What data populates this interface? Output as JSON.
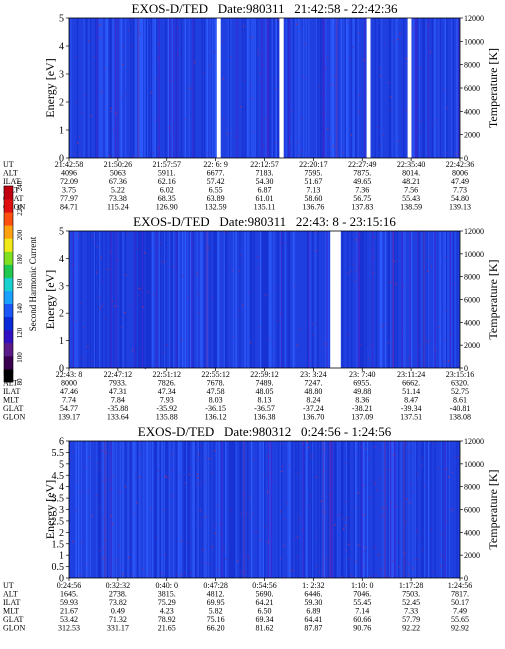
{
  "chart_data": [
    {
      "type": "heatmap",
      "title": "EXOS-D/TED   Date:980311   21:42:58 - 22:42:36",
      "ylabel": "Energy [eV]",
      "y2label": "Temperature [K]",
      "ylim": [
        0,
        5
      ],
      "y2lim": [
        0,
        12000
      ],
      "yticks": [
        "0",
        "1",
        "2",
        "3",
        "4",
        "5"
      ],
      "y2ticks": [
        "0",
        "2000",
        "4000",
        "6000",
        "8000",
        "10000",
        "12000"
      ],
      "data_gaps": [
        [
          0.378,
          0.388
        ],
        [
          0.538,
          0.549
        ],
        [
          0.761,
          0.771
        ],
        [
          0.866,
          0.876
        ]
      ],
      "row_labels": [
        "UT",
        "ALT",
        "ILAT",
        "MLT",
        "GLAT",
        "GLON"
      ],
      "columns": [
        [
          "21:42:58",
          "4096",
          "72.09",
          "3.75",
          "77.97",
          "84.71"
        ],
        [
          "21:50:26",
          "5063",
          "67.36",
          "5.22",
          "73.38",
          "115.24"
        ],
        [
          "21:57:57",
          "5911.",
          "62.16",
          "6.02",
          "68.35",
          "126.90"
        ],
        [
          "22: 6: 9",
          "6677.",
          "57.42",
          "6.55",
          "63.89",
          "132.59"
        ],
        [
          "22:12:57",
          "7183.",
          "54.30",
          "6.87",
          "61.01",
          "135.11"
        ],
        [
          "22:20:17",
          "7595.",
          "51.67",
          "7.13",
          "58.60",
          "136.76"
        ],
        [
          "22:27:49",
          "7875.",
          "49.65",
          "7.36",
          "56.75",
          "137.83"
        ],
        [
          "22:35:40",
          "8014.",
          "48.21",
          "7.56",
          "55.43",
          "138.59"
        ],
        [
          "22:42:36",
          "8006",
          "47.49",
          "7.73",
          "54.80",
          "139.13"
        ]
      ]
    },
    {
      "type": "heatmap",
      "title": "EXOS-D/TED   Date:980311   22:43: 8 - 23:15:16",
      "ylabel": "Energy [eV]",
      "y2label": "Temperature [K]",
      "ylim": [
        0,
        5
      ],
      "y2lim": [
        0,
        12000
      ],
      "yticks": [
        "0",
        "1",
        "2",
        "3",
        "4",
        "5"
      ],
      "y2ticks": [
        "0",
        "2000",
        "4000",
        "6000",
        "8000",
        "10000",
        "12000"
      ],
      "data_gaps": [
        [
          0.668,
          0.695
        ]
      ],
      "row_labels": [
        "UT",
        "ALT",
        "ILAT",
        "MLT",
        "GLAT",
        "GLON"
      ],
      "columns": [
        [
          "22:43: 8",
          "8000",
          "47.46",
          "7.74",
          "54.77",
          "139.17"
        ],
        [
          "22:47:12",
          "7933.",
          "47.31",
          "7.84",
          "-35.88",
          "133.64"
        ],
        [
          "22:51:12",
          "7826.",
          "47.34",
          "7.93",
          "-35.92",
          "135.88"
        ],
        [
          "22:55:12",
          "7678.",
          "47.58",
          "8.03",
          "-36.15",
          "136.12"
        ],
        [
          "22:59:12",
          "7489.",
          "48.05",
          "8.13",
          "-36.57",
          "136.38"
        ],
        [
          "23: 3:24",
          "7247.",
          "48.80",
          "8.24",
          "-37.24",
          "136.70"
        ],
        [
          "23: 7:40",
          "6955.",
          "49.88",
          "8.36",
          "-38.21",
          "137.09"
        ],
        [
          "23:11:24",
          "6662.",
          "51.14",
          "8.47",
          "-39.34",
          "137.51"
        ],
        [
          "23:15:16",
          "6320.",
          "52.75",
          "8.61",
          "-40.81",
          "138.08"
        ]
      ]
    },
    {
      "type": "heatmap",
      "title": "EXOS-D/TED   Date:980312   0:24:56 - 1:24:56",
      "ylabel": "Energy [eV]",
      "y2label": "Temperature [K]",
      "ylim": [
        0,
        6
      ],
      "y2lim": [
        0,
        12000
      ],
      "yticks": [
        "0",
        "0.5",
        "1",
        "1.5",
        "2",
        "2.5",
        "3",
        "3.5",
        "4",
        "4.5",
        "5",
        "5.5",
        "6"
      ],
      "y2ticks": [
        "0",
        "2000",
        "4000",
        "6000",
        "8000",
        "10000",
        "12000"
      ],
      "data_gaps": [],
      "row_labels": [
        "UT",
        "ALT",
        "ILAT",
        "MLT",
        "GLAT",
        "GLON"
      ],
      "columns": [
        [
          "0:24:56",
          "1645.",
          "59.93",
          "21.67",
          "53.42",
          "312.53"
        ],
        [
          "0:32:32",
          "2738.",
          "73.82",
          "0.49",
          "71.32",
          "331.17"
        ],
        [
          "0:40: 0",
          "3815.",
          "75.29",
          "4.23",
          "78.92",
          "21.65"
        ],
        [
          "0:47:28",
          "4812.",
          "69.95",
          "5.82",
          "75.16",
          "66.20"
        ],
        [
          "0:54:56",
          "5690.",
          "64.21",
          "6.50",
          "69.34",
          "81.62"
        ],
        [
          "1: 2:32",
          "6446.",
          "59.30",
          "6.89",
          "64.41",
          "87.87"
        ],
        [
          "1:10: 0",
          "7046.",
          "55.45",
          "7.14",
          "60.66",
          "90.76"
        ],
        [
          "1:17:28",
          "7503.",
          "52.45",
          "7.33",
          "57.79",
          "92.22"
        ],
        [
          "1:24:56",
          "7817.",
          "50.17",
          "7.49",
          "55.65",
          "92.92"
        ]
      ]
    }
  ],
  "colorbar": {
    "label": "Second Harmonic Current",
    "ticks": [
      "80",
      "100",
      "120",
      "140",
      "160",
      "180",
      "200",
      "220",
      "240"
    ],
    "colors": [
      "#000000",
      "#3a0050",
      "#5a1a8a",
      "#3010c0",
      "#0a2ad8",
      "#1a55f5",
      "#1aa0ff",
      "#18d0d0",
      "#20c850",
      "#80e020",
      "#f0e818",
      "#ffa010",
      "#ff5010",
      "#e01010",
      "#c00010"
    ]
  }
}
